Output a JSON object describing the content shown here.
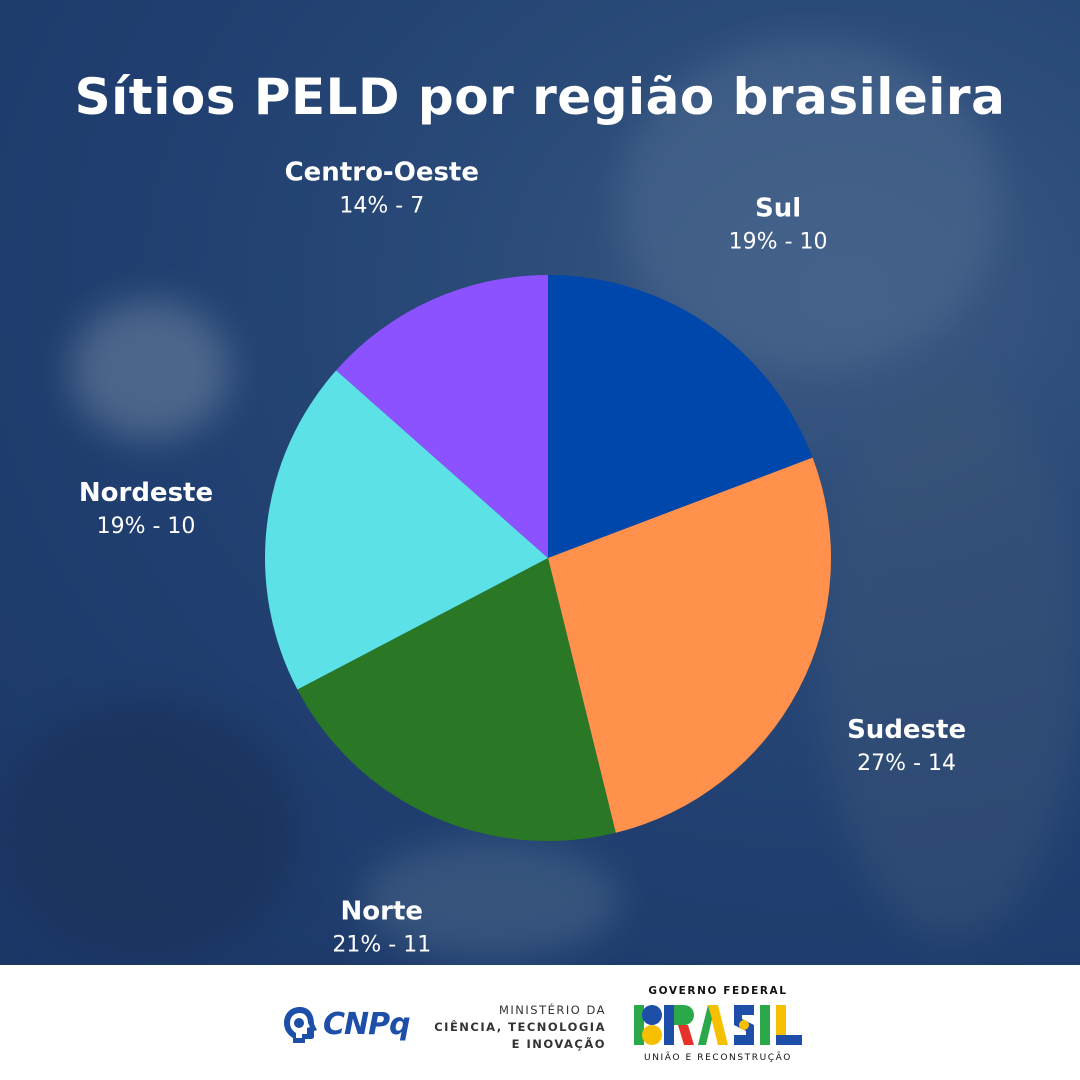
{
  "title": "Sítios PELD por região brasileira",
  "chart_data": {
    "type": "pie",
    "title": "Sítios PELD por região brasileira",
    "slices": [
      {
        "name": "Sul",
        "percent_label": "19% - 10",
        "value": 10,
        "color": "#0047ab"
      },
      {
        "name": "Sudeste",
        "percent_label": "27% - 14",
        "value": 14,
        "color": "#ff914d"
      },
      {
        "name": "Norte",
        "percent_label": "21% - 11",
        "value": 11,
        "color": "#2a7725"
      },
      {
        "name": "Nordeste",
        "percent_label": "19% - 10",
        "value": 10,
        "color": "#5ce1e6"
      },
      {
        "name": "Centro-Oeste",
        "percent_label": "14% - 7",
        "value": 7,
        "color": "#8c52ff"
      }
    ],
    "start_angle_deg": 0,
    "direction": "clockwise"
  },
  "footer": {
    "cnpq": "CNPq",
    "ministry_line1": "MINISTÉRIO DA",
    "ministry_line2": "CIÊNCIA, TECNOLOGIA",
    "ministry_line3": "E INOVAÇÃO",
    "gov_top": "GOVERNO FEDERAL",
    "gov_word": "BRASIL",
    "gov_bottom": "UNIÃO E RECONSTRUÇÃO"
  },
  "colors": {
    "background": "#203f70",
    "title_text": "#ffffff",
    "cnpq_blue": "#1d4ea8"
  }
}
